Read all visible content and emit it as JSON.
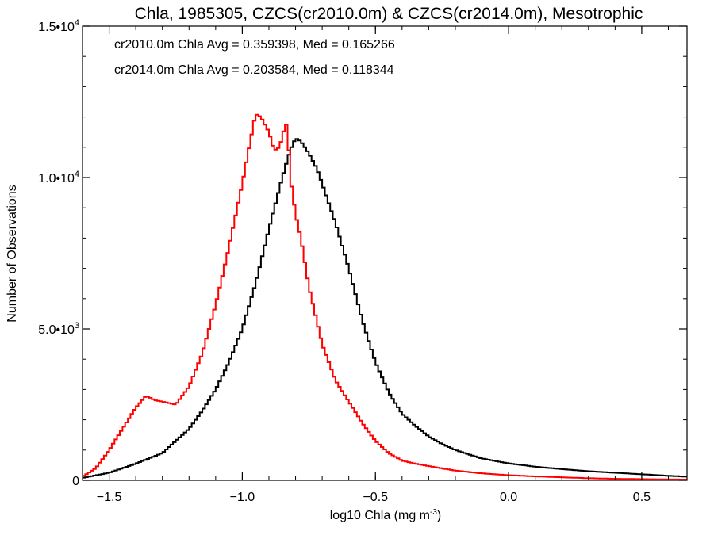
{
  "chart_data": {
    "type": "line",
    "title": "Chla, 1985305, CZCS(cr2010.0m) & CZCS(cr2014.0m), Mesotrophic",
    "xlabel": "log10 Chla (mg m",
    "xlabel_sup": "-3",
    "xlabel_end": ")",
    "ylabel": "Number of Observations",
    "xlim": [
      -1.6,
      0.67
    ],
    "ylim": [
      0,
      15000
    ],
    "x_ticks": [
      -1.5,
      -1.0,
      -0.5,
      0.0,
      0.5
    ],
    "x_tick_labels": [
      "−1.5",
      "−1.0",
      "−0.5",
      "0.0",
      "0.5"
    ],
    "y_ticks": [
      {
        "value": 0,
        "base": "0",
        "exp": ""
      },
      {
        "value": 5000,
        "base": "5.0•10",
        "exp": "3"
      },
      {
        "value": 10000,
        "base": "1.0•10",
        "exp": "4"
      },
      {
        "value": 15000,
        "base": "1.5•10",
        "exp": "4"
      }
    ],
    "grid": false,
    "legend_position": "top-left",
    "annotations": [
      {
        "text": "cr2010.0m Chla Avg = 0.359398, Med = 0.165266",
        "color": "#000000"
      },
      {
        "text": "cr2014.0m Chla Avg = 0.203584, Med = 0.118344",
        "color": "#ff0000"
      }
    ],
    "series": [
      {
        "color": "#000000",
        "points": [
          [
            -1.6,
            80
          ],
          [
            -1.5,
            250
          ],
          [
            -1.4,
            550
          ],
          [
            -1.3,
            900
          ],
          [
            -1.25,
            1300
          ],
          [
            -1.2,
            1700
          ],
          [
            -1.15,
            2300
          ],
          [
            -1.1,
            3000
          ],
          [
            -1.05,
            3900
          ],
          [
            -1.0,
            5000
          ],
          [
            -0.95,
            6500
          ],
          [
            -0.9,
            8300
          ],
          [
            -0.85,
            10000
          ],
          [
            -0.82,
            10900
          ],
          [
            -0.8,
            11300
          ],
          [
            -0.78,
            11200
          ],
          [
            -0.75,
            10800
          ],
          [
            -0.72,
            10300
          ],
          [
            -0.7,
            9800
          ],
          [
            -0.65,
            8500
          ],
          [
            -0.6,
            7000
          ],
          [
            -0.55,
            5300
          ],
          [
            -0.5,
            3900
          ],
          [
            -0.45,
            2900
          ],
          [
            -0.4,
            2200
          ],
          [
            -0.35,
            1800
          ],
          [
            -0.3,
            1450
          ],
          [
            -0.25,
            1200
          ],
          [
            -0.2,
            1000
          ],
          [
            -0.1,
            720
          ],
          [
            0.0,
            560
          ],
          [
            0.1,
            450
          ],
          [
            0.2,
            370
          ],
          [
            0.3,
            300
          ],
          [
            0.4,
            250
          ],
          [
            0.5,
            200
          ],
          [
            0.6,
            150
          ],
          [
            0.67,
            120
          ]
        ]
      },
      {
        "color": "#ff0000",
        "points": [
          [
            -1.6,
            120
          ],
          [
            -1.55,
            400
          ],
          [
            -1.5,
            1000
          ],
          [
            -1.45,
            1700
          ],
          [
            -1.4,
            2400
          ],
          [
            -1.36,
            2800
          ],
          [
            -1.33,
            2650
          ],
          [
            -1.3,
            2600
          ],
          [
            -1.25,
            2500
          ],
          [
            -1.2,
            3100
          ],
          [
            -1.15,
            4200
          ],
          [
            -1.1,
            5800
          ],
          [
            -1.05,
            7700
          ],
          [
            -1.0,
            9800
          ],
          [
            -0.97,
            11200
          ],
          [
            -0.95,
            12100
          ],
          [
            -0.93,
            12000
          ],
          [
            -0.9,
            11500
          ],
          [
            -0.88,
            10900
          ],
          [
            -0.86,
            11000
          ],
          [
            -0.84,
            11700
          ],
          [
            -0.83,
            11800
          ],
          [
            -0.82,
            10000
          ],
          [
            -0.8,
            8800
          ],
          [
            -0.78,
            8000
          ],
          [
            -0.75,
            6400
          ],
          [
            -0.7,
            4500
          ],
          [
            -0.65,
            3300
          ],
          [
            -0.6,
            2600
          ],
          [
            -0.55,
            1900
          ],
          [
            -0.5,
            1300
          ],
          [
            -0.45,
            900
          ],
          [
            -0.4,
            650
          ],
          [
            -0.35,
            550
          ],
          [
            -0.3,
            470
          ],
          [
            -0.2,
            320
          ],
          [
            -0.1,
            230
          ],
          [
            0.0,
            170
          ],
          [
            0.1,
            130
          ],
          [
            0.2,
            100
          ],
          [
            0.3,
            70
          ],
          [
            0.4,
            50
          ],
          [
            0.5,
            40
          ],
          [
            0.6,
            30
          ],
          [
            0.67,
            25
          ]
        ]
      }
    ]
  }
}
